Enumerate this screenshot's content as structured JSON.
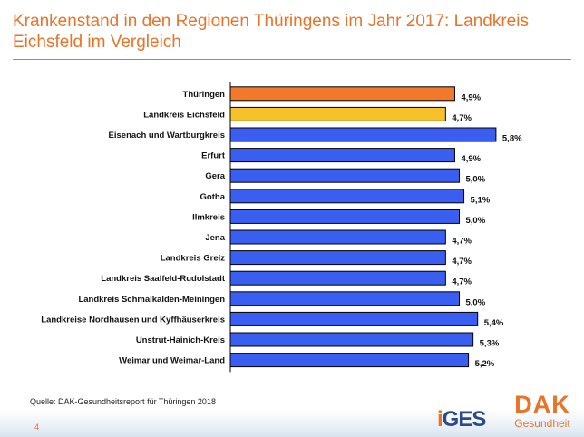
{
  "slide": {
    "title": "Krankenstand in den Regionen Thüringens im Jahr 2017: Landkreis Eichsfeld im Vergleich",
    "source": "Quelle: DAK-Gesundheitsreport für Thüringen 2018",
    "page_number": "4"
  },
  "logos": {
    "iges_prefix": "i",
    "iges_rest": "GES",
    "dak_word": "DAK",
    "dak_sub": "Gesundheit"
  },
  "colors": {
    "highlight_thueringen": "#f07a2a",
    "highlight_eichsfeld": "#f6c12a",
    "default_bar": "#3a5ff0",
    "accent": "#e8742a"
  },
  "chart_data": {
    "type": "bar",
    "orientation": "horizontal",
    "title": "",
    "xlabel": "",
    "ylabel": "",
    "xlim": [
      0,
      6
    ],
    "grid": false,
    "legend": "none",
    "categories": [
      "Thüringen",
      "Landkreis Eichsfeld",
      "Eisenach und Wartburgkreis",
      "Erfurt",
      "Gera",
      "Gotha",
      "Ilmkreis",
      "Jena",
      "Landkreis Greiz",
      "Landkreis Saalfeld-Rudolstadt",
      "Landkreis Schmalkalden-Meiningen",
      "Landkreise Nordhausen und Kyffhäuserkreis",
      "Unstrut-Hainich-Kreis",
      "Weimar und Weimar-Land"
    ],
    "values": [
      4.9,
      4.7,
      5.8,
      4.9,
      5.0,
      5.1,
      5.0,
      4.7,
      4.7,
      4.7,
      5.0,
      5.4,
      5.3,
      5.2
    ],
    "value_labels": [
      "4,9%",
      "4,7%",
      "5,8%",
      "4,9%",
      "5,0%",
      "5,1%",
      "5,0%",
      "4,7%",
      "4,7%",
      "4,7%",
      "5,0%",
      "5,4%",
      "5,3%",
      "5,2%"
    ],
    "bar_colors": [
      "#f07a2a",
      "#f6c12a",
      "#3a5ff0",
      "#3a5ff0",
      "#3a5ff0",
      "#3a5ff0",
      "#3a5ff0",
      "#3a5ff0",
      "#3a5ff0",
      "#3a5ff0",
      "#3a5ff0",
      "#3a5ff0",
      "#3a5ff0",
      "#3a5ff0"
    ]
  }
}
